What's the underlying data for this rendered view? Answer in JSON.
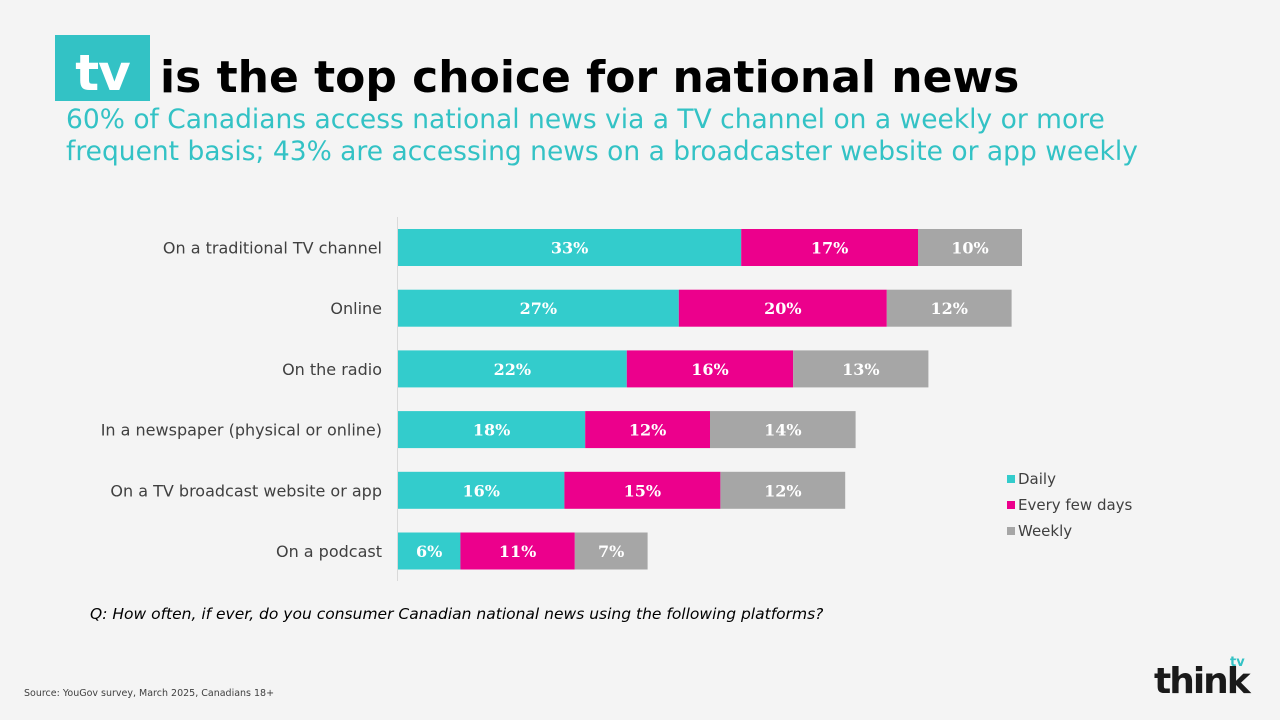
{
  "badge": "tv",
  "title": "is the top choice for national news",
  "subtitle": "60% of Canadians access national news via a TV channel on a weekly or more frequent basis; 43% are accessing news on a broadcaster website or app weekly",
  "question": "Q: How often, if ever, do you consumer Canadian national news using the following platforms?",
  "source": "Source: YouGov survey, March 2025, Canadians 18+",
  "logo": {
    "word": "think",
    "superscript": "tv"
  },
  "colors": {
    "accent": "#33c2c5",
    "daily": "#33cccc",
    "every_few_days": "#ec008c",
    "weekly": "#a6a6a6"
  },
  "chart_data": {
    "type": "bar",
    "orientation": "horizontal",
    "stacked": true,
    "categories": [
      "On a traditional TV channel",
      "Online",
      "On the radio",
      "In a newspaper (physical or online)",
      "On a TV broadcast website or app",
      "On a podcast"
    ],
    "series": [
      {
        "name": "Daily",
        "color": "#33cccc",
        "values": [
          33,
          27,
          22,
          18,
          16,
          6
        ]
      },
      {
        "name": "Every few days",
        "color": "#ec008c",
        "values": [
          17,
          20,
          16,
          12,
          15,
          11
        ]
      },
      {
        "name": "Weekly",
        "color": "#a6a6a6",
        "values": [
          10,
          12,
          13,
          14,
          12,
          7
        ]
      }
    ],
    "value_suffix": "%",
    "legend_position": "right"
  }
}
